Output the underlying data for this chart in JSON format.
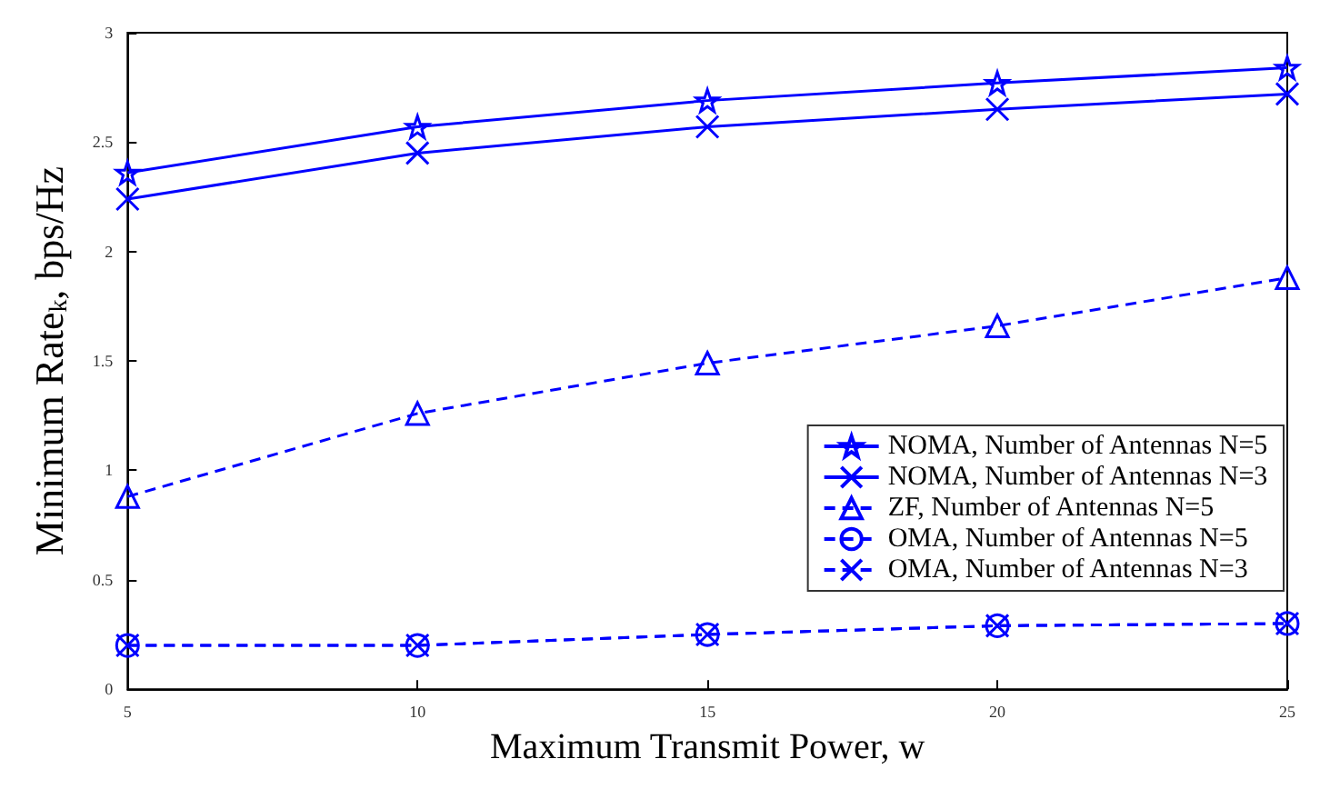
{
  "chart_data": {
    "type": "line",
    "xlabel": "Maximum Transmit Power, w",
    "ylabel": "Minimum Rate$_{k}$, bps/Hz",
    "x": [
      5,
      10,
      15,
      20,
      25
    ],
    "xlim": [
      5,
      25
    ],
    "xticks": [
      5,
      10,
      15,
      20,
      25
    ],
    "ylim": [
      0,
      3
    ],
    "yticks": [
      0,
      0.5,
      1,
      1.5,
      2,
      2.5,
      3
    ],
    "grid": false,
    "legend": "right",
    "series": [
      {
        "name": "NOMA, Number of Antennas N=5",
        "color": "#0000ff",
        "marker": "star",
        "line_style": "solid",
        "values": [
          2.36,
          2.57,
          2.69,
          2.77,
          2.84
        ]
      },
      {
        "name": "NOMA, Number of Antennas N=3",
        "color": "#0000ff",
        "marker": "cross",
        "line_style": "solid",
        "values": [
          2.24,
          2.45,
          2.57,
          2.65,
          2.72
        ]
      },
      {
        "name": "ZF, Number of Antennas N=5",
        "color": "#0000ff",
        "marker": "triangle",
        "line_style": "dashed",
        "values": [
          0.88,
          1.26,
          1.49,
          1.66,
          1.88
        ]
      },
      {
        "name": "OMA, Number of Antennas N=5",
        "color": "#0000ff",
        "marker": "circle",
        "line_style": "dashed",
        "values": [
          0.2,
          0.2,
          0.25,
          0.29,
          0.3
        ]
      },
      {
        "name": "OMA, Number of Antennas N=3",
        "color": "#0000ff",
        "marker": "cross",
        "line_style": "dashed",
        "values": [
          0.2,
          0.2,
          0.25,
          0.29,
          0.3
        ]
      }
    ]
  }
}
